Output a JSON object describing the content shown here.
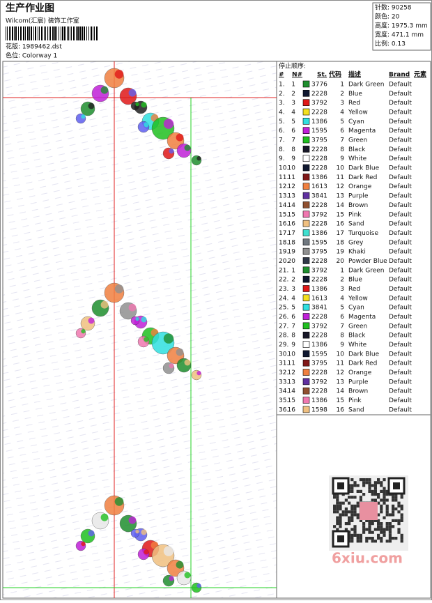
{
  "header": {
    "title": "生产作业图",
    "studio": "Wilcom(汇宸) 装饰工作室",
    "design": "花版: 1989462.dst",
    "colorway": "色位: Colorway 1"
  },
  "info": [
    "针数: 90258",
    "颜色: 20",
    "高度: 1975.3 mm",
    "宽度: 471.1 mm",
    "比例: 0.13"
  ],
  "table": {
    "title": "停止顺序:",
    "columns": [
      "#",
      "N#",
      "St.",
      "代码",
      "描述",
      "Brand",
      "元素"
    ],
    "rows": [
      [
        "1.",
        "1",
        "#1f8f2f",
        "3776",
        "1",
        "Dark Green",
        "Default"
      ],
      [
        "2.",
        "2",
        "#101830",
        "2228",
        "2",
        "Blue",
        "Default"
      ],
      [
        "3.",
        "3",
        "#e01818",
        "3792",
        "3",
        "Red",
        "Default"
      ],
      [
        "4.",
        "4",
        "#f4e020",
        "2228",
        "4",
        "Yellow",
        "Default"
      ],
      [
        "5.",
        "5",
        "#30e0e0",
        "1386",
        "5",
        "Cyan",
        "Default"
      ],
      [
        "6.",
        "6",
        "#c020d8",
        "1595",
        "6",
        "Magenta",
        "Default"
      ],
      [
        "7.",
        "7",
        "#20c020",
        "3795",
        "7",
        "Green",
        "Default"
      ],
      [
        "8.",
        "8",
        "#181828",
        "2228",
        "8",
        "Black",
        "Default"
      ],
      [
        "9.",
        "9",
        "#ffffff",
        "2228",
        "9",
        "White",
        "Default"
      ],
      [
        "10.",
        "10",
        "#101830",
        "2228",
        "10",
        "Dark Blue",
        "Default"
      ],
      [
        "11.",
        "11",
        "#801818",
        "1386",
        "11",
        "Dark Red",
        "Default"
      ],
      [
        "12.",
        "12",
        "#f08040",
        "1613",
        "12",
        "Orange",
        "Default"
      ],
      [
        "13.",
        "13",
        "#6030a0",
        "3841",
        "13",
        "Purple",
        "Default"
      ],
      [
        "14.",
        "14",
        "#905030",
        "2228",
        "14",
        "Brown",
        "Default"
      ],
      [
        "15.",
        "15",
        "#f078b0",
        "3792",
        "15",
        "Pink",
        "Default"
      ],
      [
        "16.",
        "16",
        "#f0c080",
        "2228",
        "16",
        "Sand",
        "Default"
      ],
      [
        "17.",
        "17",
        "#40e0d0",
        "1386",
        "17",
        "Turquoise",
        "Default"
      ],
      [
        "18.",
        "18",
        "#707880",
        "1595",
        "18",
        "Grey",
        "Default"
      ],
      [
        "19.",
        "19",
        "#909090",
        "3795",
        "19",
        "Khaki",
        "Default"
      ],
      [
        "20.",
        "20",
        "#303848",
        "2228",
        "20",
        "Powder Blue",
        "Default"
      ],
      [
        "21.",
        "1",
        "#1f8f2f",
        "3792",
        "1",
        "Dark Green",
        "Default"
      ],
      [
        "22.",
        "2",
        "#101830",
        "2228",
        "2",
        "Blue",
        "Default"
      ],
      [
        "23.",
        "3",
        "#e01818",
        "1386",
        "3",
        "Red",
        "Default"
      ],
      [
        "24.",
        "4",
        "#f4e020",
        "1613",
        "4",
        "Yellow",
        "Default"
      ],
      [
        "25.",
        "5",
        "#30e0e0",
        "3841",
        "5",
        "Cyan",
        "Default"
      ],
      [
        "26.",
        "6",
        "#c020d8",
        "2228",
        "6",
        "Magenta",
        "Default"
      ],
      [
        "27.",
        "7",
        "#20c020",
        "3792",
        "7",
        "Green",
        "Default"
      ],
      [
        "28.",
        "8",
        "#181828",
        "2228",
        "8",
        "Black",
        "Default"
      ],
      [
        "29.",
        "9",
        "#ffffff",
        "1386",
        "9",
        "White",
        "Default"
      ],
      [
        "30.",
        "10",
        "#101830",
        "1595",
        "10",
        "Dark Blue",
        "Default"
      ],
      [
        "31.",
        "11",
        "#801818",
        "3795",
        "11",
        "Dark Red",
        "Default"
      ],
      [
        "32.",
        "12",
        "#f08040",
        "2228",
        "12",
        "Orange",
        "Default"
      ],
      [
        "33.",
        "13",
        "#6030a0",
        "3792",
        "13",
        "Purple",
        "Default"
      ],
      [
        "34.",
        "14",
        "#905030",
        "2228",
        "14",
        "Brown",
        "Default"
      ],
      [
        "35.",
        "15",
        "#f078b0",
        "1386",
        "15",
        "Pink",
        "Default"
      ],
      [
        "36.",
        "16",
        "#f0c080",
        "1598",
        "16",
        "Sand",
        "Default"
      ]
    ]
  },
  "watermark": "6xiu.com"
}
